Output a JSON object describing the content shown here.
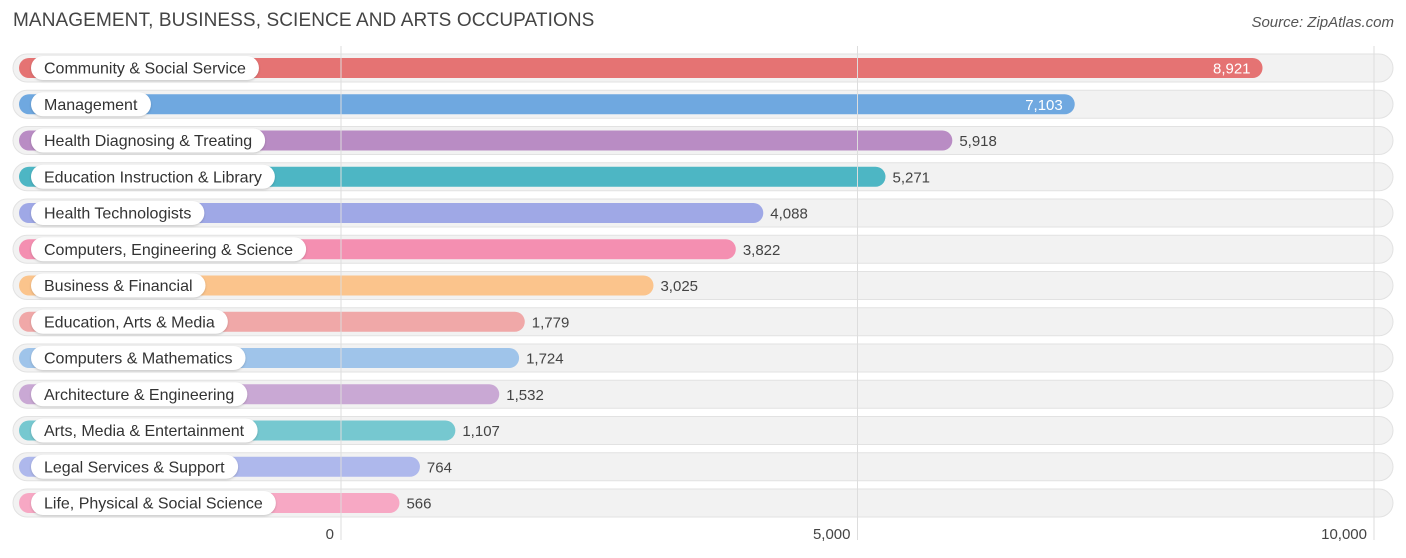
{
  "header": {
    "title": "MANAGEMENT, BUSINESS, SCIENCE AND ARTS OCCUPATIONS",
    "source": "Source: ZipAtlas.com"
  },
  "chart_data": {
    "type": "bar",
    "orientation": "horizontal",
    "title": "MANAGEMENT, BUSINESS, SCIENCE AND ARTS OCCUPATIONS",
    "xlim": [
      0,
      10000
    ],
    "x_ticks": [
      {
        "value": 0,
        "label": "0"
      },
      {
        "value": 5000,
        "label": "5,000"
      },
      {
        "value": 10000,
        "label": "10,000"
      }
    ],
    "grid": true,
    "categories": [
      "Community & Social Service",
      "Management",
      "Health Diagnosing & Treating",
      "Education Instruction & Library",
      "Health Technologists",
      "Computers, Engineering & Science",
      "Business & Financial",
      "Education, Arts & Media",
      "Computers & Mathematics",
      "Architecture & Engineering",
      "Arts, Media & Entertainment",
      "Legal Services & Support",
      "Life, Physical & Social Science"
    ],
    "values": [
      8921,
      7103,
      5918,
      5271,
      4088,
      3822,
      3025,
      1779,
      1724,
      1532,
      1107,
      764,
      566
    ],
    "value_labels": [
      "8,921",
      "7,103",
      "5,918",
      "5,271",
      "4,088",
      "3,822",
      "3,025",
      "1,779",
      "1,724",
      "1,532",
      "1,107",
      "764",
      "566"
    ],
    "colors": [
      "#e57373",
      "#6fa8e0",
      "#b98cc4",
      "#4db6c4",
      "#9fa8e6",
      "#f48fb1",
      "#fbc48c",
      "#f0a8a8",
      "#9fc4ea",
      "#c9a8d4",
      "#76c8d0",
      "#aeb8ec",
      "#f7a8c4"
    ]
  }
}
